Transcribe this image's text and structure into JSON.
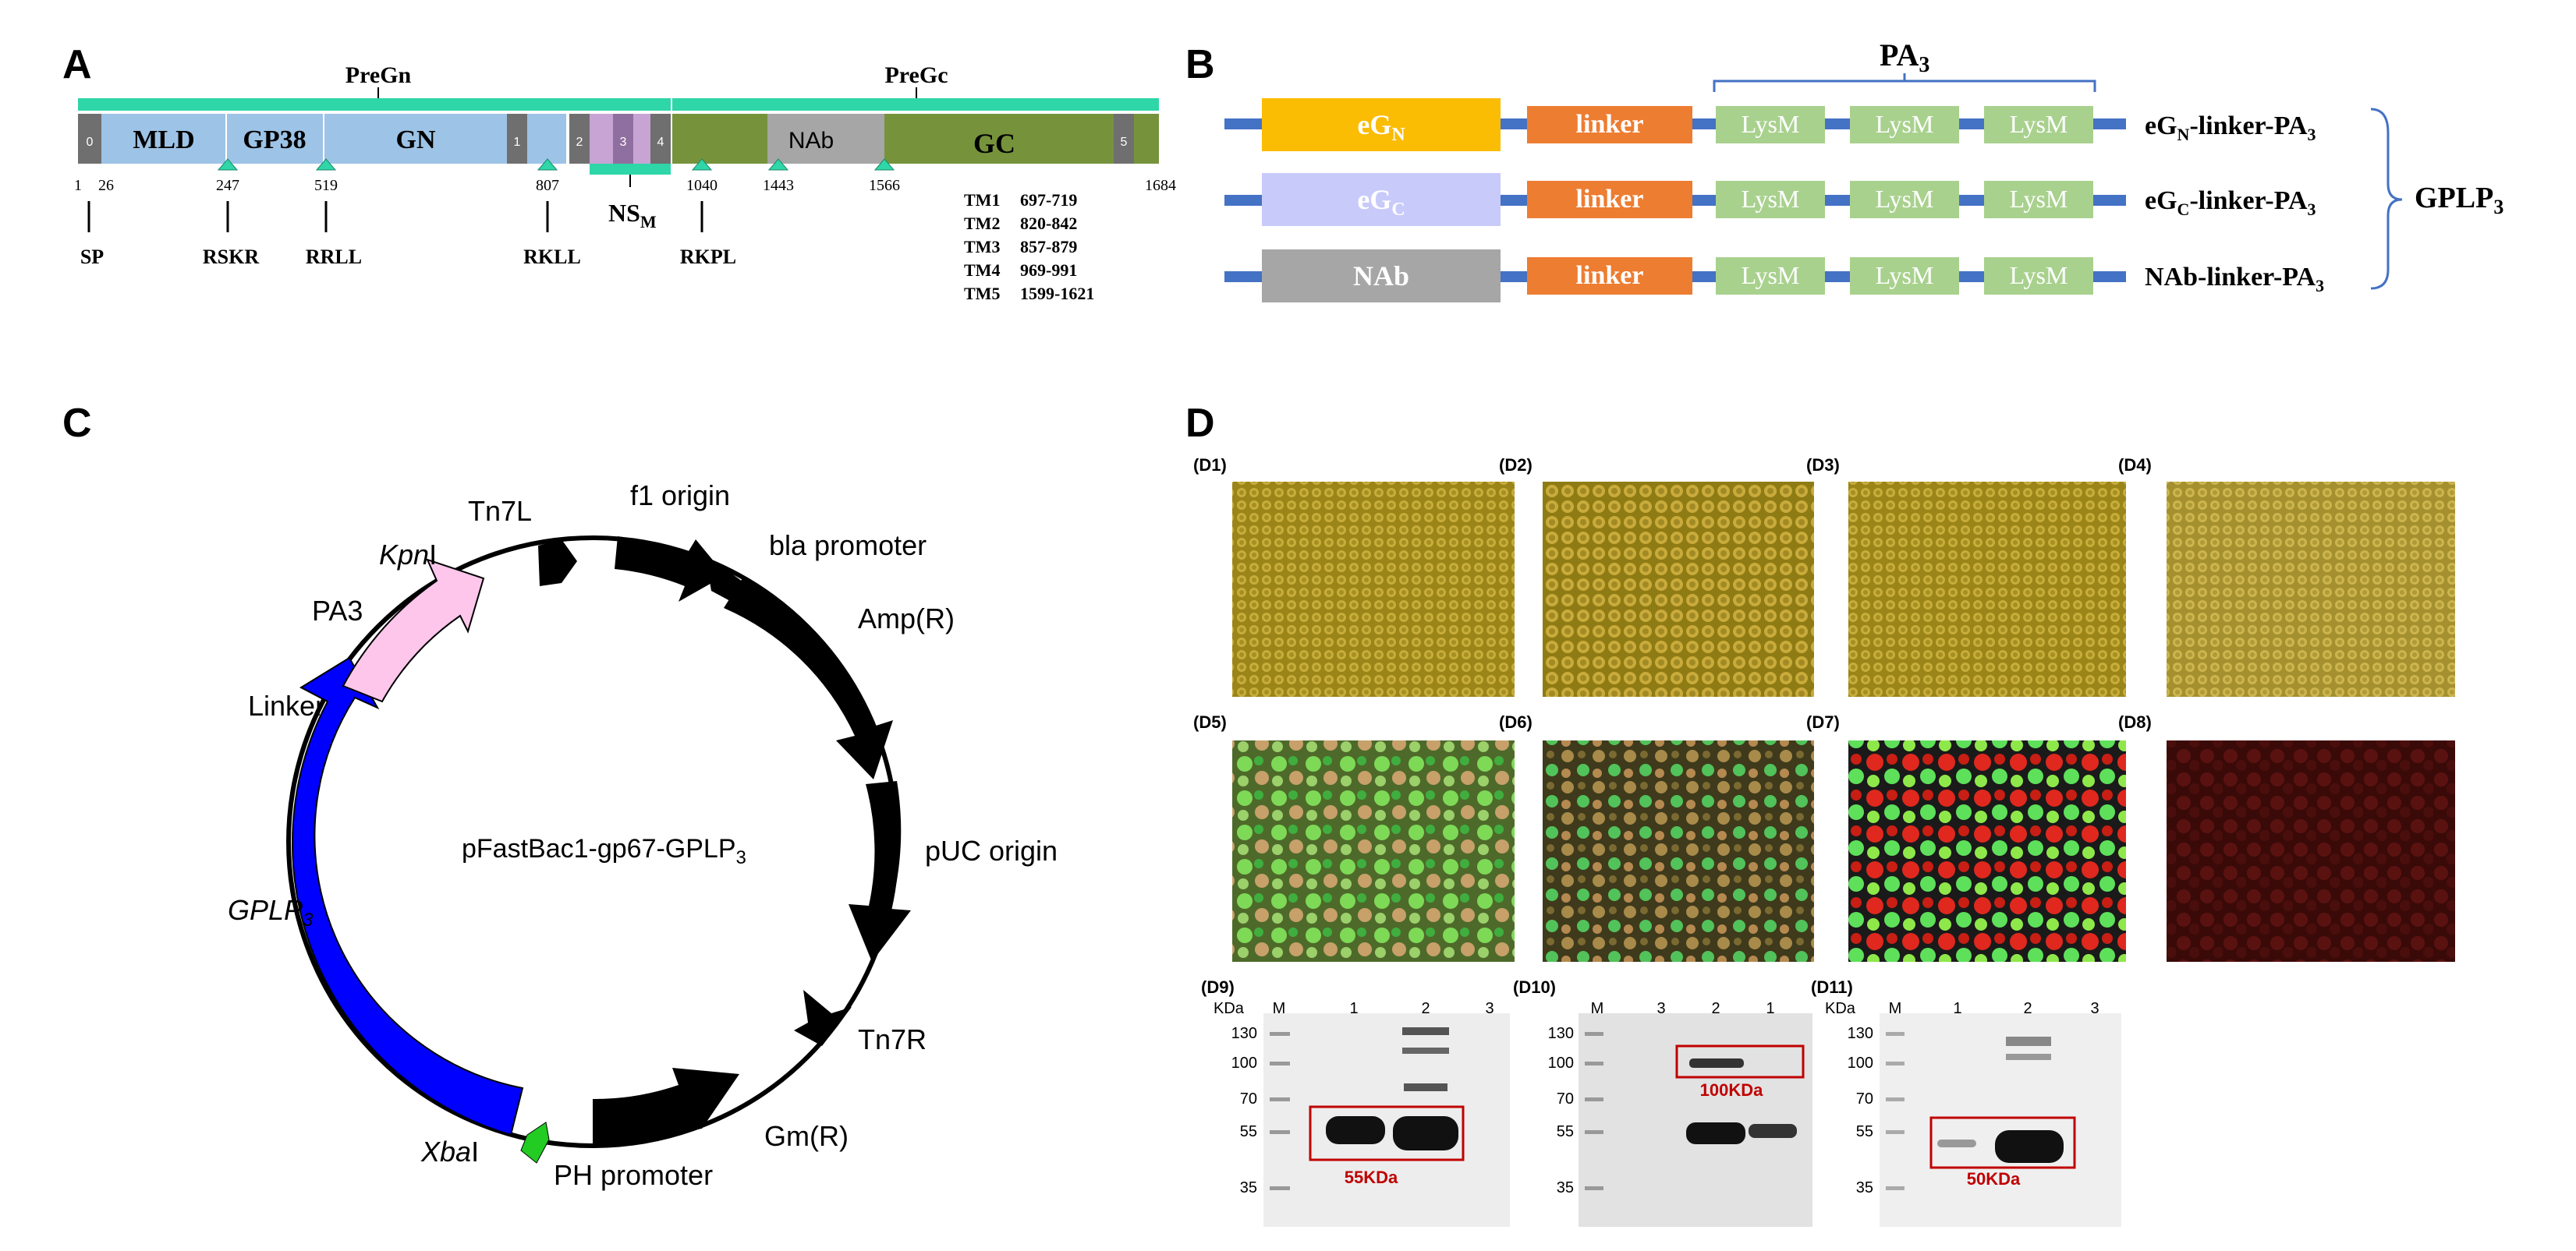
{
  "panel_labels": {
    "a": "A",
    "b": "B",
    "c": "C",
    "d": "D"
  },
  "panel_a": {
    "pregn": "PreGn",
    "pregc": "PreGc",
    "domain_mld": "MLD",
    "domain_gp38": "GP38",
    "domain_gn": "GN",
    "domain_nab": "NAb",
    "domain_gc": "GC",
    "nsm": "NS",
    "nsm_sub": "M",
    "tm_numbers": [
      "0",
      "1",
      "2",
      "3",
      "4",
      "5"
    ],
    "positions": [
      "1",
      "26",
      "247",
      "519",
      "807",
      "1040",
      "1443",
      "1566",
      "1684"
    ],
    "sites": [
      "SP",
      "RSKR",
      "RRLL",
      "RKLL",
      "RKPL"
    ],
    "tm_list": [
      {
        "name": "TM1",
        "range": "697-719"
      },
      {
        "name": "TM2",
        "range": "820-842"
      },
      {
        "name": "TM3",
        "range": "857-879"
      },
      {
        "name": "TM4",
        "range": "969-991"
      },
      {
        "name": "TM5",
        "range": "1599-1621"
      }
    ]
  },
  "panel_b": {
    "pa3_main": "PA",
    "pa3_sub": "3",
    "rows": [
      {
        "first_main": "eG",
        "first_sub": "N",
        "linker": "linker",
        "lysm": [
          "LysM",
          "LysM",
          "LysM"
        ],
        "name_main": "eG",
        "name_sub": "N",
        "name_rest": "-linker-PA",
        "name_sub2": "3",
        "color": "#fbbc04"
      },
      {
        "first_main": "eG",
        "first_sub": "C",
        "linker": "linker",
        "lysm": [
          "LysM",
          "LysM",
          "LysM"
        ],
        "name_main": "eG",
        "name_sub": "C",
        "name_rest": "-linker-PA",
        "name_sub2": "3",
        "color": "#c8cafa"
      },
      {
        "first_main": "NAb",
        "first_sub": "",
        "linker": "linker",
        "lysm": [
          "LysM",
          "LysM",
          "LysM"
        ],
        "name_main": "NAb",
        "name_sub": "",
        "name_rest": "-linker-PA",
        "name_sub2": "3",
        "color": "#a6a6a6"
      }
    ],
    "group_main": "GPLP",
    "group_sub": "3"
  },
  "panel_c": {
    "plasmid_main": "pFastBac1-gp67-GPLP",
    "plasmid_sub": "3",
    "labels": {
      "tn7l": "Tn7L",
      "f1": "f1 origin",
      "bla": "bla promoter",
      "amp": "Amp(R)",
      "puc": "pUC origin",
      "tn7r": "Tn7R",
      "gm": "Gm(R)",
      "ph": "PH promoter",
      "xba_i": "Xba",
      "xba_n": "I",
      "gplp_main": "GPLP",
      "gplp_sub": "3",
      "linker": "Linker",
      "pa3": "PA3",
      "kpn_i": "Kpn",
      "kpn_n": "I"
    }
  },
  "panel_d": {
    "subpanels": [
      "(D1)",
      "(D2)",
      "(D3)",
      "(D4)",
      "(D5)",
      "(D6)",
      "(D7)",
      "(D8)",
      "(D9)",
      "(D10)",
      "(D11)"
    ],
    "kda": "KDa",
    "markers": [
      "130",
      "100",
      "70",
      "55",
      "35"
    ],
    "lanes_d9": [
      "M",
      "1",
      "2",
      "3"
    ],
    "lanes_d10": [
      "M",
      "3",
      "2",
      "1"
    ],
    "lanes_d11": [
      "M",
      "1",
      "2",
      "3"
    ],
    "band_labels": [
      "55KDa",
      "100KDa",
      "50KDa"
    ],
    "box_color": "#c00000"
  }
}
